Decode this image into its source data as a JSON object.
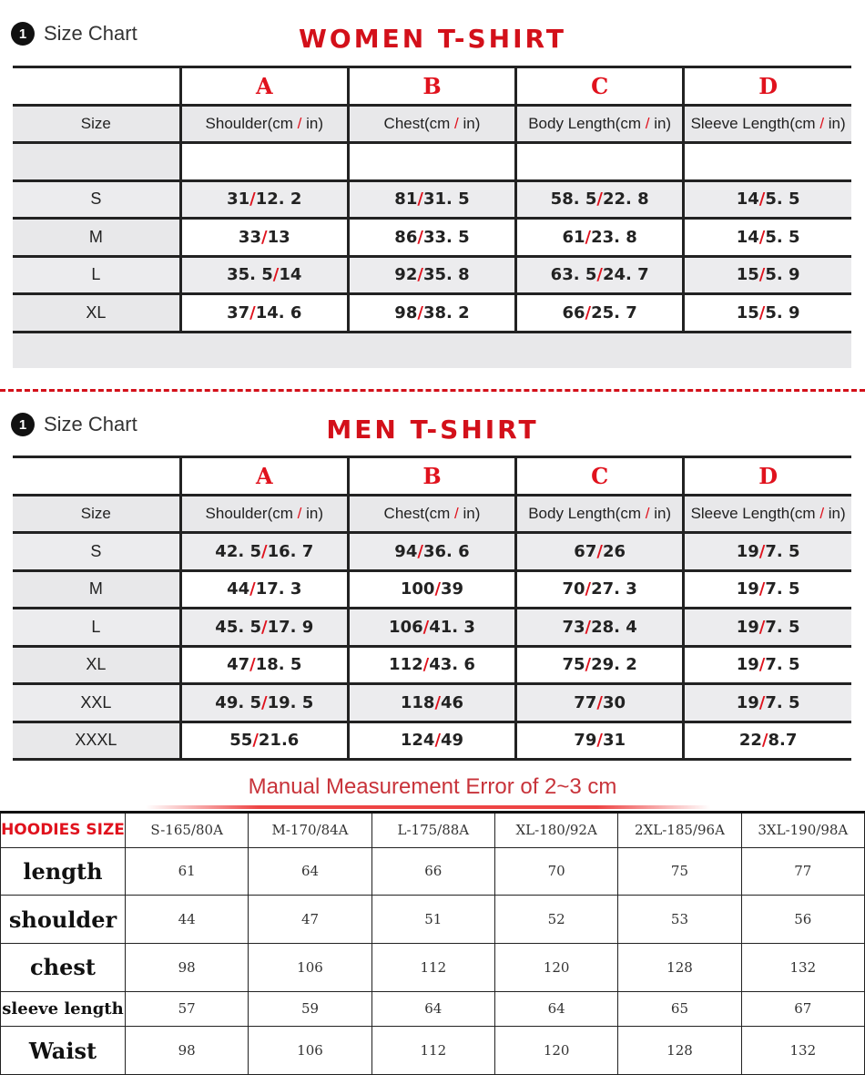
{
  "women": {
    "step": "1",
    "label": "Size Chart",
    "title": "WOMEN T-SHIRT",
    "letters": [
      "A",
      "B",
      "C",
      "D"
    ],
    "headers": [
      "Size",
      "Shoulder(cm / in)",
      "Chest(cm / in)",
      "Body Length(cm / in)",
      "Sleeve Length(cm / in)"
    ],
    "rows": [
      [
        "S",
        "31/12. 2",
        "81/31. 5",
        "58. 5/22. 8",
        "14/5. 5"
      ],
      [
        "M",
        "33/13",
        "86/33. 5",
        "61/23. 8",
        "14/5. 5"
      ],
      [
        "L",
        "35. 5/14",
        "92/35. 8",
        "63. 5/24. 7",
        "15/5. 9"
      ],
      [
        "XL",
        "37/14. 6",
        "98/38. 2",
        "66/25. 7",
        "15/5. 9"
      ]
    ]
  },
  "men": {
    "step": "1",
    "label": "Size Chart",
    "title": "MEN T-SHIRT",
    "letters": [
      "A",
      "B",
      "C",
      "D"
    ],
    "headers": [
      "Size",
      "Shoulder(cm / in)",
      "Chest(cm / in)",
      "Body Length(cm / in)",
      "Sleeve Length(cm / in)"
    ],
    "rows": [
      [
        "S",
        "42. 5/16. 7",
        "94/36. 6",
        "67/26",
        "19/7. 5"
      ],
      [
        "M",
        "44/17. 3",
        "100/39",
        "70/27. 3",
        "19/7. 5"
      ],
      [
        "L",
        "45. 5/17. 9",
        "106/41. 3",
        "73/28. 4",
        "19/7. 5"
      ],
      [
        "XL",
        "47/18. 5",
        "112/43. 6",
        "75/29. 2",
        "19/7. 5"
      ],
      [
        "XXL",
        "49. 5/19. 5",
        "118/46",
        "77/30",
        "19/7. 5"
      ],
      [
        "XXXL",
        "55/21.6",
        "124/49",
        "79/31",
        "22/8.7"
      ]
    ]
  },
  "note": "Manual Measurement Error of 2~3 cm",
  "hoodies": {
    "corner": "HOODIES SIZE",
    "sizes": [
      "S-165/80A",
      "M-170/84A",
      "L-175/88A",
      "XL-180/92A",
      "2XL-185/96A",
      "3XL-190/98A"
    ],
    "rows": [
      {
        "label": "length",
        "values": [
          "61",
          "64",
          "66",
          "70",
          "75",
          "77"
        ]
      },
      {
        "label": "shoulder",
        "values": [
          "44",
          "47",
          "51",
          "52",
          "53",
          "56"
        ]
      },
      {
        "label": "chest",
        "values": [
          "98",
          "106",
          "112",
          "120",
          "128",
          "132"
        ]
      },
      {
        "label": "sleeve length",
        "values": [
          "57",
          "59",
          "64",
          "64",
          "65",
          "67"
        ]
      },
      {
        "label": "Waist",
        "values": [
          "98",
          "106",
          "112",
          "120",
          "128",
          "132"
        ]
      }
    ]
  },
  "colors": {
    "accent": "#e0121d",
    "row_gray": "#e8e8ea"
  }
}
